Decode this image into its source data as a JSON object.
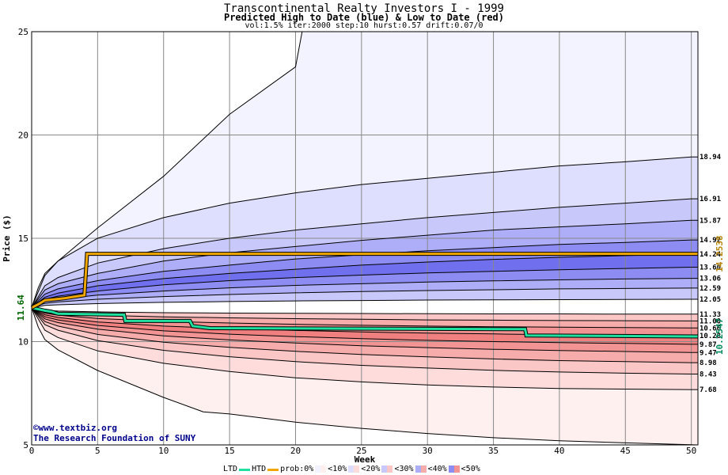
{
  "titles": {
    "main": "Transcontinental Realty Investors I - 1999",
    "sub": "Predicted High to Date (blue) &  Low to Date (red)",
    "params": "vol:1.5% iter:2000 step:10 hurst:0.57 drift:0.07/0"
  },
  "credit": {
    "url": "©www.textbiz.org",
    "org": "The Research Foundation of SUNY"
  },
  "legend": {
    "ltd": "LTD",
    "htd": "HTD",
    "prob": "prob:0%",
    "bins": [
      "<10%",
      "<20%",
      "<30%",
      "<40%",
      "<50%"
    ]
  },
  "chart_data": {
    "type": "area",
    "title": "Transcontinental Realty Investors I - 1999",
    "xlabel": "Week",
    "ylabel": "Price ($)",
    "xlim": [
      0,
      50.5
    ],
    "ylim": [
      5,
      25
    ],
    "xticks": [
      0,
      5,
      10,
      15,
      20,
      25,
      30,
      35,
      40,
      45,
      50
    ],
    "yticks": [
      5,
      10,
      15,
      20,
      25
    ],
    "grid": true,
    "start_price": 11.64,
    "start_label": "11.64",
    "colors": {
      "htd_line": "#f0a800",
      "ltd_line": "#20e0a0",
      "htd_value": "#b8860b",
      "ltd_value": "#008b5b",
      "start_value": "#006400",
      "blue_bands": [
        "#f3f3ff",
        "#dedefe",
        "#c8c8fb",
        "#aeaef8",
        "#8c8cf3",
        "#7070ee"
      ],
      "red_bands": [
        "#fff0f0",
        "#fedcdc",
        "#fbc6c6",
        "#f7acac",
        "#f39494",
        "#f08080"
      ]
    },
    "htd_final": "14.2538",
    "ltd_final": "10.2547",
    "htd_path": [
      [
        0,
        11.64
      ],
      [
        0.5,
        11.8
      ],
      [
        1,
        12.0
      ],
      [
        2.5,
        12.1
      ],
      [
        3.5,
        12.2
      ],
      [
        4,
        12.25
      ],
      [
        4.2,
        14.25
      ],
      [
        50.5,
        14.25
      ]
    ],
    "ltd_path": [
      [
        0,
        11.64
      ],
      [
        1,
        11.5
      ],
      [
        1.5,
        11.45
      ],
      [
        2,
        11.35
      ],
      [
        7,
        11.3
      ],
      [
        7.1,
        11.0
      ],
      [
        12,
        11.0
      ],
      [
        12.2,
        10.75
      ],
      [
        13.5,
        10.65
      ],
      [
        37.4,
        10.6
      ],
      [
        37.5,
        10.3
      ],
      [
        50.5,
        10.25
      ]
    ],
    "upper_percentiles": [
      {
        "label": "18.94",
        "end": 18.94,
        "path": [
          [
            0,
            11.64
          ],
          [
            1,
            13.2
          ],
          [
            2,
            13.9
          ],
          [
            5,
            15.0
          ],
          [
            10,
            16.0
          ],
          [
            15,
            16.7
          ],
          [
            20,
            17.2
          ],
          [
            25,
            17.6
          ],
          [
            30,
            17.9
          ],
          [
            35,
            18.2
          ],
          [
            40,
            18.5
          ],
          [
            45,
            18.7
          ],
          [
            50,
            18.94
          ]
        ]
      },
      {
        "label": "16.91",
        "end": 16.91,
        "path": [
          [
            0,
            11.64
          ],
          [
            1,
            12.7
          ],
          [
            2,
            13.1
          ],
          [
            5,
            13.8
          ],
          [
            10,
            14.5
          ],
          [
            15,
            15.0
          ],
          [
            20,
            15.4
          ],
          [
            25,
            15.7
          ],
          [
            30,
            16.0
          ],
          [
            35,
            16.25
          ],
          [
            40,
            16.5
          ],
          [
            45,
            16.7
          ],
          [
            50,
            16.91
          ]
        ]
      },
      {
        "label": "15.87",
        "end": 15.87,
        "path": [
          [
            0,
            11.64
          ],
          [
            1,
            12.5
          ],
          [
            2,
            12.8
          ],
          [
            5,
            13.3
          ],
          [
            10,
            13.9
          ],
          [
            15,
            14.3
          ],
          [
            20,
            14.6
          ],
          [
            25,
            14.9
          ],
          [
            30,
            15.15
          ],
          [
            35,
            15.4
          ],
          [
            40,
            15.55
          ],
          [
            45,
            15.7
          ],
          [
            50,
            15.87
          ]
        ]
      },
      {
        "label": "14.92",
        "end": 14.92,
        "path": [
          [
            0,
            11.64
          ],
          [
            1,
            12.3
          ],
          [
            2,
            12.55
          ],
          [
            5,
            12.95
          ],
          [
            10,
            13.4
          ],
          [
            15,
            13.7
          ],
          [
            20,
            14.0
          ],
          [
            25,
            14.2
          ],
          [
            30,
            14.4
          ],
          [
            35,
            14.55
          ],
          [
            40,
            14.7
          ],
          [
            45,
            14.8
          ],
          [
            50,
            14.92
          ]
        ]
      },
      {
        "label": "14.24",
        "end": 14.24,
        "path": [
          [
            0,
            11.64
          ],
          [
            1,
            12.15
          ],
          [
            2,
            12.35
          ],
          [
            5,
            12.7
          ],
          [
            10,
            13.05
          ],
          [
            15,
            13.3
          ],
          [
            20,
            13.5
          ],
          [
            25,
            13.7
          ],
          [
            30,
            13.85
          ],
          [
            35,
            13.98
          ],
          [
            40,
            14.08
          ],
          [
            45,
            14.16
          ],
          [
            50,
            14.24
          ]
        ]
      },
      {
        "label": "13.60",
        "end": 13.6,
        "path": [
          [
            0,
            11.64
          ],
          [
            1,
            12.05
          ],
          [
            2,
            12.2
          ],
          [
            5,
            12.45
          ],
          [
            10,
            12.75
          ],
          [
            15,
            12.95
          ],
          [
            20,
            13.1
          ],
          [
            25,
            13.22
          ],
          [
            30,
            13.32
          ],
          [
            35,
            13.4
          ],
          [
            40,
            13.48
          ],
          [
            45,
            13.54
          ],
          [
            50,
            13.6
          ]
        ]
      },
      {
        "label": "13.06",
        "end": 13.06,
        "path": [
          [
            0,
            11.64
          ],
          [
            1,
            11.95
          ],
          [
            2,
            12.05
          ],
          [
            5,
            12.25
          ],
          [
            10,
            12.45
          ],
          [
            15,
            12.6
          ],
          [
            20,
            12.72
          ],
          [
            25,
            12.8
          ],
          [
            30,
            12.88
          ],
          [
            35,
            12.94
          ],
          [
            40,
            12.99
          ],
          [
            45,
            13.03
          ],
          [
            50,
            13.06
          ]
        ]
      },
      {
        "label": "12.59",
        "end": 12.59,
        "path": [
          [
            0,
            11.64
          ],
          [
            1,
            11.85
          ],
          [
            2,
            11.92
          ],
          [
            5,
            12.05
          ],
          [
            10,
            12.18
          ],
          [
            15,
            12.28
          ],
          [
            20,
            12.36
          ],
          [
            25,
            12.42
          ],
          [
            30,
            12.47
          ],
          [
            35,
            12.51
          ],
          [
            40,
            12.55
          ],
          [
            45,
            12.57
          ],
          [
            50,
            12.59
          ]
        ]
      },
      {
        "label": "12.05",
        "end": 12.05,
        "path": [
          [
            0,
            11.64
          ],
          [
            1,
            11.75
          ],
          [
            2,
            11.78
          ],
          [
            5,
            11.84
          ],
          [
            10,
            11.9
          ],
          [
            15,
            11.94
          ],
          [
            20,
            11.97
          ],
          [
            25,
            11.99
          ],
          [
            30,
            12.01
          ],
          [
            35,
            12.02
          ],
          [
            40,
            12.03
          ],
          [
            45,
            12.04
          ],
          [
            50,
            12.05
          ]
        ]
      }
    ],
    "lower_percentiles": [
      {
        "label": "11.33",
        "end": 11.33,
        "path": [
          [
            0,
            11.64
          ],
          [
            1,
            11.52
          ],
          [
            2,
            11.48
          ],
          [
            5,
            11.44
          ],
          [
            10,
            11.4
          ],
          [
            15,
            11.38
          ],
          [
            20,
            11.37
          ],
          [
            25,
            11.36
          ],
          [
            30,
            11.35
          ],
          [
            35,
            11.34
          ],
          [
            40,
            11.34
          ],
          [
            45,
            11.33
          ],
          [
            50,
            11.33
          ]
        ]
      },
      {
        "label": "11.00",
        "end": 11.0,
        "path": [
          [
            0,
            11.64
          ],
          [
            1,
            11.45
          ],
          [
            2,
            11.38
          ],
          [
            5,
            11.28
          ],
          [
            10,
            11.2
          ],
          [
            15,
            11.15
          ],
          [
            20,
            11.11
          ],
          [
            25,
            11.08
          ],
          [
            30,
            11.05
          ],
          [
            35,
            11.04
          ],
          [
            40,
            11.02
          ],
          [
            45,
            11.01
          ],
          [
            50,
            11.0
          ]
        ]
      },
      {
        "label": "10.66",
        "end": 10.66,
        "path": [
          [
            0,
            11.64
          ],
          [
            1,
            11.38
          ],
          [
            2,
            11.28
          ],
          [
            5,
            11.12
          ],
          [
            10,
            10.98
          ],
          [
            15,
            10.9
          ],
          [
            20,
            10.84
          ],
          [
            25,
            10.79
          ],
          [
            30,
            10.75
          ],
          [
            35,
            10.72
          ],
          [
            40,
            10.7
          ],
          [
            45,
            10.68
          ],
          [
            50,
            10.66
          ]
        ]
      },
      {
        "label": "10.28",
        "end": 10.28,
        "path": [
          [
            0,
            11.64
          ],
          [
            1,
            11.3
          ],
          [
            2,
            11.17
          ],
          [
            5,
            10.95
          ],
          [
            10,
            10.75
          ],
          [
            15,
            10.63
          ],
          [
            20,
            10.54
          ],
          [
            25,
            10.47
          ],
          [
            30,
            10.41
          ],
          [
            35,
            10.37
          ],
          [
            40,
            10.33
          ],
          [
            45,
            10.3
          ],
          [
            50,
            10.28
          ]
        ]
      },
      {
        "label": "9.87",
        "end": 9.87,
        "path": [
          [
            0,
            11.64
          ],
          [
            1,
            11.2
          ],
          [
            2,
            11.05
          ],
          [
            5,
            10.78
          ],
          [
            10,
            10.52
          ],
          [
            15,
            10.36
          ],
          [
            20,
            10.24
          ],
          [
            25,
            10.14
          ],
          [
            30,
            10.06
          ],
          [
            35,
            10.0
          ],
          [
            40,
            9.95
          ],
          [
            45,
            9.91
          ],
          [
            50,
            9.87
          ]
        ]
      },
      {
        "label": "9.47",
        "end": 9.47,
        "path": [
          [
            0,
            11.64
          ],
          [
            1,
            11.1
          ],
          [
            2,
            10.92
          ],
          [
            5,
            10.6
          ],
          [
            10,
            10.28
          ],
          [
            15,
            10.08
          ],
          [
            20,
            9.93
          ],
          [
            25,
            9.8
          ],
          [
            30,
            9.71
          ],
          [
            35,
            9.63
          ],
          [
            40,
            9.57
          ],
          [
            45,
            9.52
          ],
          [
            50,
            9.47
          ]
        ]
      },
      {
        "label": "8.98",
        "end": 8.98,
        "path": [
          [
            0,
            11.64
          ],
          [
            1,
            10.97
          ],
          [
            2,
            10.75
          ],
          [
            5,
            10.35
          ],
          [
            10,
            9.97
          ],
          [
            15,
            9.72
          ],
          [
            20,
            9.53
          ],
          [
            25,
            9.38
          ],
          [
            30,
            9.26
          ],
          [
            35,
            9.16
          ],
          [
            40,
            9.08
          ],
          [
            45,
            9.03
          ],
          [
            50,
            8.98
          ]
        ]
      },
      {
        "label": "8.43",
        "end": 8.43,
        "path": [
          [
            0,
            11.64
          ],
          [
            1,
            10.82
          ],
          [
            2,
            10.55
          ],
          [
            5,
            10.05
          ],
          [
            10,
            9.58
          ],
          [
            15,
            9.27
          ],
          [
            20,
            9.03
          ],
          [
            25,
            8.85
          ],
          [
            30,
            8.72
          ],
          [
            35,
            8.61
          ],
          [
            40,
            8.53
          ],
          [
            45,
            8.47
          ],
          [
            50,
            8.43
          ]
        ]
      },
      {
        "label": "7.68",
        "end": 7.68,
        "path": [
          [
            0,
            11.64
          ],
          [
            1,
            10.55
          ],
          [
            2,
            10.2
          ],
          [
            5,
            9.55
          ],
          [
            10,
            8.95
          ],
          [
            15,
            8.55
          ],
          [
            20,
            8.25
          ],
          [
            25,
            8.05
          ],
          [
            30,
            7.9
          ],
          [
            35,
            7.8
          ],
          [
            40,
            7.73
          ],
          [
            45,
            7.7
          ],
          [
            50,
            7.68
          ]
        ]
      }
    ],
    "outer_upper": {
      "path": [
        [
          0,
          11.64
        ],
        [
          0.5,
          12.6
        ],
        [
          1,
          13.3
        ],
        [
          2,
          13.9
        ],
        [
          5,
          15.5
        ],
        [
          10,
          18.0
        ],
        [
          15,
          21.0
        ],
        [
          20,
          23.3
        ],
        [
          20.5,
          25
        ],
        [
          50.5,
          25
        ]
      ]
    },
    "outer_lower": {
      "path": [
        [
          0,
          11.64
        ],
        [
          0.5,
          10.7
        ],
        [
          1,
          10.1
        ],
        [
          2,
          9.6
        ],
        [
          5,
          8.6
        ],
        [
          10,
          7.3
        ],
        [
          13,
          6.6
        ],
        [
          15,
          6.5
        ],
        [
          20,
          6.1
        ],
        [
          25,
          5.8
        ],
        [
          30,
          5.55
        ],
        [
          35,
          5.35
        ],
        [
          40,
          5.2
        ],
        [
          45,
          5.1
        ],
        [
          50.5,
          5.0
        ]
      ]
    }
  }
}
